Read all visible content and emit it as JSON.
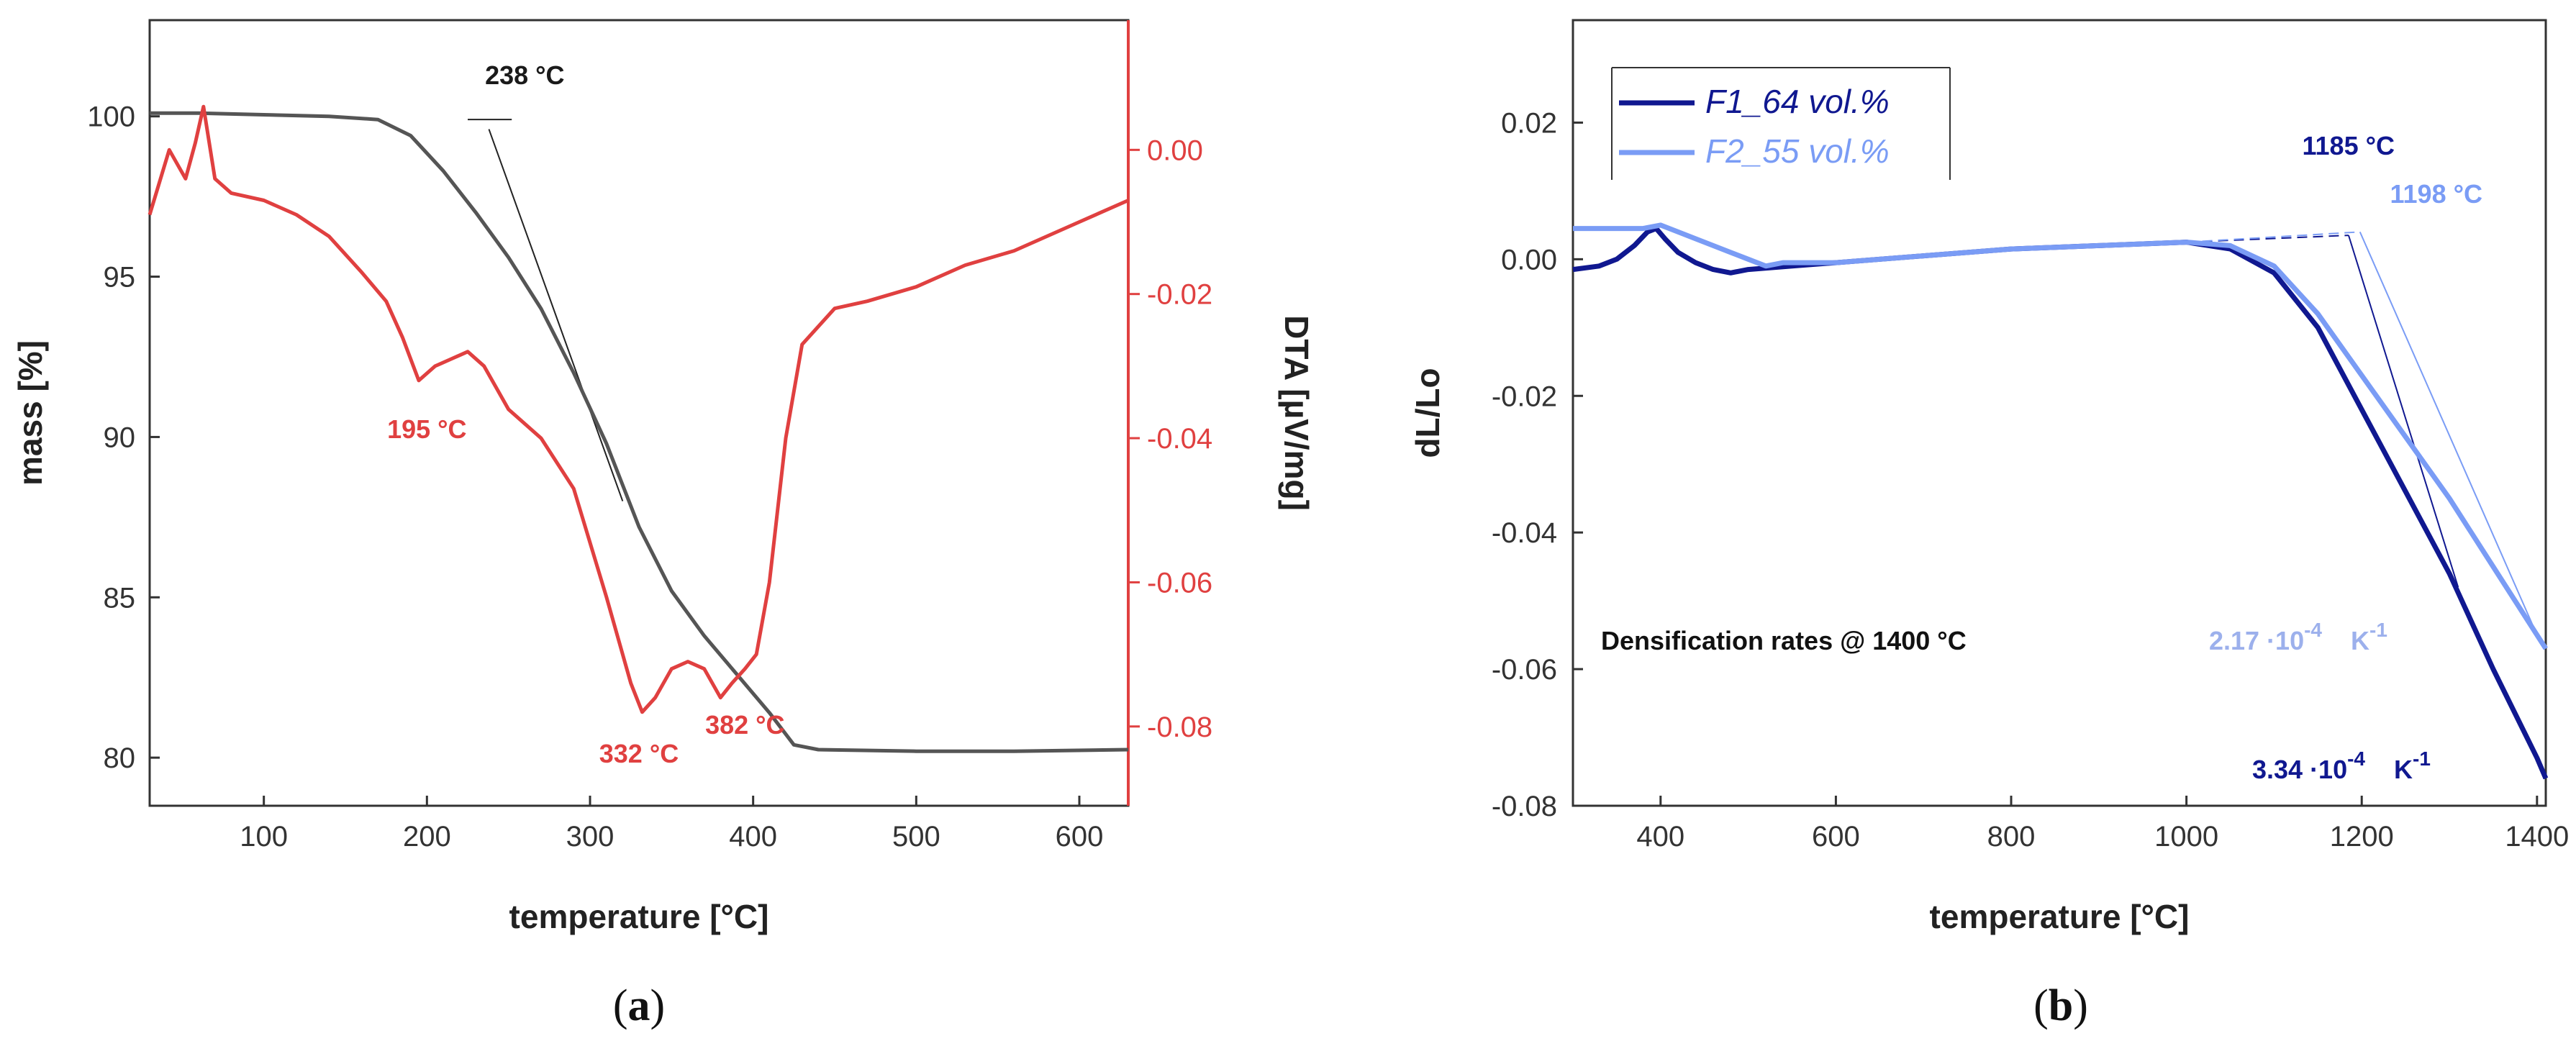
{
  "chart_data": [
    {
      "panel": "(a)",
      "panel_label": "(a)",
      "panel_letter": "a",
      "type": "line",
      "xlabel": "temperature [°C]",
      "ylabel": "mass [%]",
      "y2label": "DTA [µV/mg]",
      "xlim": [
        30,
        630
      ],
      "ylim": [
        78.5,
        103
      ],
      "y2lim": [
        -0.091,
        0.018
      ],
      "xticks": [
        100,
        200,
        300,
        400,
        500,
        600
      ],
      "yticks": [
        80,
        85,
        90,
        95,
        100
      ],
      "y2ticks": [
        0.0,
        -0.02,
        -0.04,
        -0.06,
        -0.08
      ],
      "y2tick_labels": [
        "0.00",
        "-0.02",
        "-0.04",
        "-0.06",
        "-0.08"
      ],
      "series": [
        {
          "name": "mass",
          "axis": "left",
          "color": "#555555",
          "x": [
            30,
            60,
            100,
            140,
            170,
            190,
            210,
            230,
            250,
            270,
            290,
            310,
            330,
            350,
            370,
            390,
            410,
            425,
            440,
            500,
            560,
            630
          ],
          "y": [
            100.1,
            100.1,
            100.05,
            100.0,
            99.9,
            99.4,
            98.3,
            97.0,
            95.6,
            94.0,
            92.0,
            89.8,
            87.2,
            85.2,
            83.8,
            82.6,
            81.4,
            80.4,
            80.25,
            80.2,
            80.2,
            80.25
          ]
        },
        {
          "name": "DTA",
          "axis": "right",
          "color": "#e04040",
          "x": [
            30,
            42,
            52,
            58,
            63,
            70,
            80,
            100,
            120,
            140,
            160,
            175,
            185,
            195,
            205,
            215,
            225,
            235,
            250,
            270,
            290,
            310,
            325,
            332,
            340,
            350,
            360,
            370,
            380,
            387,
            395,
            402,
            410,
            420,
            430,
            450,
            470,
            500,
            530,
            560,
            600,
            630
          ],
          "y": [
            -0.009,
            0.0,
            -0.004,
            0.001,
            0.006,
            -0.004,
            -0.006,
            -0.007,
            -0.009,
            -0.012,
            -0.017,
            -0.021,
            -0.026,
            -0.032,
            -0.03,
            -0.029,
            -0.028,
            -0.03,
            -0.036,
            -0.04,
            -0.047,
            -0.062,
            -0.074,
            -0.078,
            -0.076,
            -0.072,
            -0.071,
            -0.072,
            -0.076,
            -0.074,
            -0.072,
            -0.07,
            -0.06,
            -0.04,
            -0.027,
            -0.022,
            -0.021,
            -0.019,
            -0.016,
            -0.014,
            -0.01,
            -0.007
          ]
        }
      ],
      "tangent": {
        "x": [
          238,
          320
        ],
        "y": [
          99.6,
          88.0
        ],
        "color": "#222222"
      },
      "annotations": [
        {
          "text": "238 °C",
          "x": 260,
          "y": 101.0,
          "color": "#1a1a1a"
        },
        {
          "text": "195 °C",
          "x": 200,
          "axis": "right",
          "y2": -0.04,
          "color": "#e04040"
        },
        {
          "text": "332 °C",
          "x": 330,
          "axis": "right",
          "y2": -0.085,
          "color": "#e04040"
        },
        {
          "text": "382 °C",
          "x": 395,
          "axis": "right",
          "y2": -0.081,
          "color": "#e04040"
        }
      ]
    },
    {
      "panel": "(b)",
      "panel_label": "(b)",
      "panel_letter": "b",
      "type": "line",
      "xlabel": "temperature [°C]",
      "ylabel": "dL/Lo",
      "xlim": [
        300,
        1410
      ],
      "ylim": [
        -0.08,
        0.035
      ],
      "xticks": [
        400,
        600,
        800,
        1000,
        1200,
        1400
      ],
      "yticks": [
        0.02,
        0.0,
        -0.02,
        -0.04,
        -0.06,
        -0.08
      ],
      "ytick_labels": [
        "0.02",
        "0.00",
        "-0.02",
        "-0.04",
        "-0.06",
        "-0.08"
      ],
      "legend_position": "top-left",
      "series": [
        {
          "name": "F1_64 vol.%",
          "color": "#101890",
          "x": [
            300,
            330,
            350,
            370,
            385,
            395,
            405,
            420,
            440,
            460,
            480,
            500,
            550,
            600,
            700,
            800,
            900,
            1000,
            1050,
            1100,
            1150,
            1200,
            1250,
            1300,
            1350,
            1400,
            1410
          ],
          "y": [
            -0.0015,
            -0.001,
            0.0,
            0.002,
            0.004,
            0.0045,
            0.003,
            0.001,
            -0.0005,
            -0.0015,
            -0.002,
            -0.0015,
            -0.001,
            -0.0005,
            0.0005,
            0.0015,
            0.002,
            0.0025,
            0.0015,
            -0.002,
            -0.01,
            -0.022,
            -0.034,
            -0.046,
            -0.06,
            -0.073,
            -0.076
          ]
        },
        {
          "name": "F2_55 vol.%",
          "color": "#7a9cf5",
          "x": [
            300,
            340,
            380,
            400,
            420,
            440,
            460,
            480,
            500,
            520,
            540,
            600,
            700,
            800,
            900,
            1000,
            1050,
            1100,
            1150,
            1200,
            1250,
            1300,
            1350,
            1400,
            1410
          ],
          "y": [
            0.0045,
            0.0045,
            0.0045,
            0.005,
            0.004,
            0.003,
            0.002,
            0.001,
            0.0,
            -0.001,
            -0.0005,
            -0.0005,
            0.0005,
            0.0015,
            0.002,
            0.0025,
            0.002,
            -0.001,
            -0.008,
            -0.017,
            -0.026,
            -0.035,
            -0.045,
            -0.055,
            -0.057
          ]
        }
      ],
      "tangents": [
        {
          "x": [
            1000,
            1185,
            1310
          ],
          "y": [
            0.0025,
            0.0035,
            -0.048
          ],
          "color": "#101890"
        },
        {
          "x": [
            1000,
            1198,
            1400
          ],
          "y": [
            0.0025,
            0.004,
            -0.055
          ],
          "color": "#7a9cf5"
        }
      ],
      "annotations": [
        {
          "text": "1185 °C",
          "color": "#101890"
        },
        {
          "text": "1198 °C",
          "color": "#7a9cf5"
        },
        {
          "text": "Densification rates @ 1400 °C",
          "color": "#111111"
        },
        {
          "text": "2.17 ·10",
          "sup": "-4",
          "unit": "K",
          "unit_sup": "-1",
          "color": "#9cb0ec"
        },
        {
          "text": "3.34 ·10",
          "sup": "-4",
          "unit": "K",
          "unit_sup": "-1",
          "color": "#101890"
        }
      ]
    }
  ]
}
